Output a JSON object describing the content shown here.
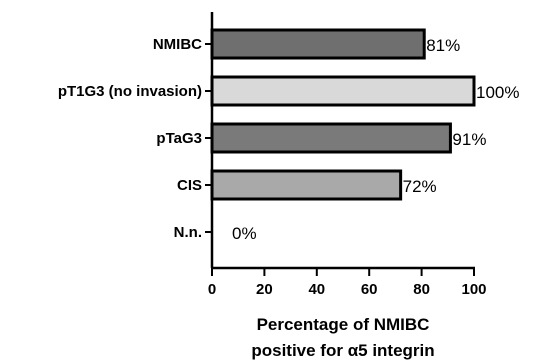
{
  "chart_data": {
    "type": "bar",
    "orientation": "horizontal",
    "categories": [
      "NMIBC",
      "pT1G3 (no invasion)",
      "pTaG3",
      "CIS",
      "N.n."
    ],
    "values": [
      81,
      100,
      91,
      72,
      0
    ],
    "value_labels": [
      "81%",
      "100%",
      "91%",
      "72%",
      "0%"
    ],
    "bar_colors": [
      "#6f6f6f",
      "#d9d9d9",
      "#7a7a7a",
      "#a9a9a9",
      "#ffffff"
    ],
    "xlabel": [
      "Percentage of NMIBC",
      "positive for α5 integrin"
    ],
    "ylabel": "",
    "title": "",
    "xlim": [
      0,
      100
    ],
    "xticks": [
      0,
      20,
      40,
      60,
      80,
      100
    ],
    "grid": false,
    "legend": "none"
  }
}
